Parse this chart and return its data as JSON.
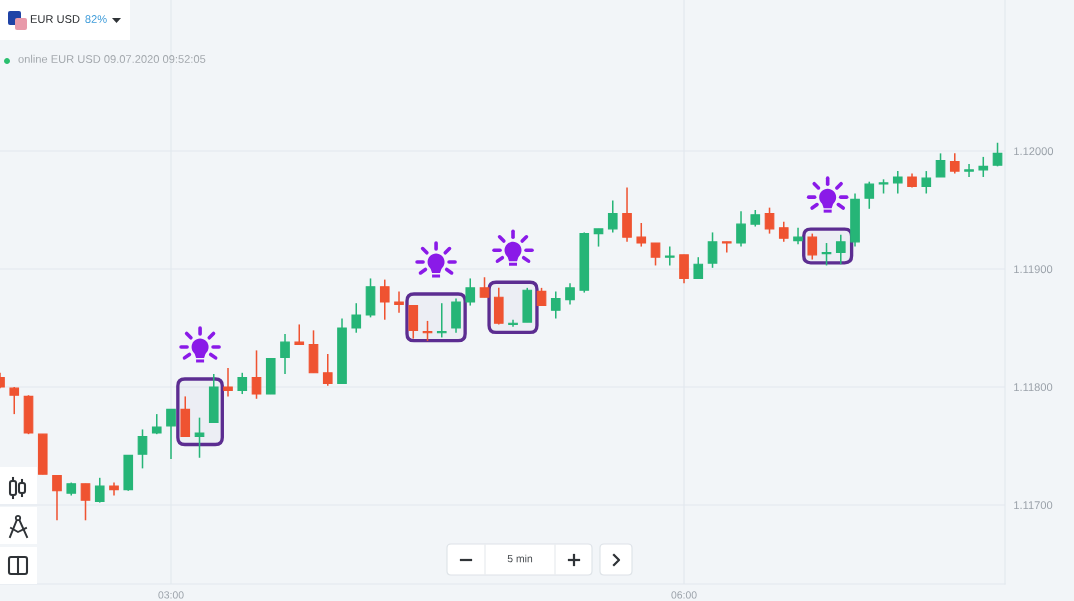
{
  "chart_data": {
    "type": "candlestick",
    "x": [
      2.0,
      2.0833,
      2.1667,
      2.25,
      2.3333,
      2.4167,
      2.5,
      2.5833,
      2.6667,
      2.75,
      2.8333,
      2.9167,
      3.0,
      3.0833,
      3.1667,
      3.25,
      3.3333,
      3.4167,
      3.5,
      3.5833,
      3.6667,
      3.75,
      3.8333,
      3.9167,
      4.0,
      4.0833,
      4.1667,
      4.25,
      4.3333,
      4.4167,
      4.5,
      4.5833,
      4.6667,
      4.75,
      4.8333,
      4.9167,
      5.0,
      5.0833,
      5.1667,
      5.25,
      5.3333,
      5.4167,
      5.5,
      5.5833,
      5.6667,
      5.75,
      5.8333,
      5.9167,
      6.0,
      6.0833,
      6.1667,
      6.25,
      6.3333,
      6.4167,
      6.5,
      6.5833,
      6.6667,
      6.75,
      6.8333,
      6.9167,
      7.0,
      7.0833,
      7.1667,
      7.25,
      7.3333,
      7.4167,
      7.5,
      7.5833,
      7.6667,
      7.75,
      7.8333
    ],
    "ohlc": [
      [
        1.11808,
        1.11812,
        1.11799,
        1.118
      ],
      [
        1.11799,
        1.118,
        1.11777,
        1.11793
      ],
      [
        1.11792,
        1.11793,
        1.1176,
        1.11761
      ],
      [
        1.1176,
        1.1176,
        1.11726,
        1.11726
      ],
      [
        1.11725,
        1.11725,
        1.11687,
        1.11712
      ],
      [
        1.1171,
        1.11719,
        1.11708,
        1.11718
      ],
      [
        1.11718,
        1.11718,
        1.11687,
        1.11704
      ],
      [
        1.11703,
        1.11723,
        1.11702,
        1.11716
      ],
      [
        1.11716,
        1.11719,
        1.11708,
        1.11713
      ],
      [
        1.11713,
        1.11742,
        1.11712,
        1.11742
      ],
      [
        1.11743,
        1.11764,
        1.11731,
        1.11758
      ],
      [
        1.11761,
        1.11777,
        1.1176,
        1.11766
      ],
      [
        1.11767,
        1.11781,
        1.11739,
        1.11781
      ],
      [
        1.11781,
        1.11792,
        1.11758,
        1.11758
      ],
      [
        1.11758,
        1.11774,
        1.1174,
        1.11761
      ],
      [
        1.1177,
        1.11811,
        1.1177,
        1.118
      ],
      [
        1.118,
        1.11816,
        1.11792,
        1.11797
      ],
      [
        1.11797,
        1.11812,
        1.11794,
        1.11808
      ],
      [
        1.11808,
        1.11831,
        1.1179,
        1.11794
      ],
      [
        1.11794,
        1.11824,
        1.11794,
        1.11824
      ],
      [
        1.11825,
        1.11845,
        1.11811,
        1.11838
      ],
      [
        1.11838,
        1.11853,
        1.11836,
        1.11836
      ],
      [
        1.11836,
        1.11848,
        1.11812,
        1.11812
      ],
      [
        1.11812,
        1.11828,
        1.11801,
        1.11803
      ],
      [
        1.11803,
        1.11858,
        1.11803,
        1.1185
      ],
      [
        1.1185,
        1.11871,
        1.11846,
        1.11861
      ],
      [
        1.11861,
        1.11892,
        1.11859,
        1.11885
      ],
      [
        1.11885,
        1.11891,
        1.11857,
        1.11872
      ],
      [
        1.11872,
        1.11881,
        1.11863,
        1.1187
      ],
      [
        1.11869,
        1.11869,
        1.11841,
        1.11848
      ],
      [
        1.11847,
        1.11856,
        1.11839,
        1.11846
      ],
      [
        1.11846,
        1.11871,
        1.11842,
        1.11847
      ],
      [
        1.1185,
        1.11875,
        1.11846,
        1.11872
      ],
      [
        1.11872,
        1.11892,
        1.11869,
        1.11884
      ],
      [
        1.11884,
        1.11893,
        1.11876,
        1.11876
      ],
      [
        1.11876,
        1.11884,
        1.11853,
        1.11854
      ],
      [
        1.11853,
        1.11857,
        1.11851,
        1.11854
      ],
      [
        1.11855,
        1.11884,
        1.11855,
        1.11882
      ],
      [
        1.11881,
        1.11884,
        1.11869,
        1.11869
      ],
      [
        1.11865,
        1.11881,
        1.11858,
        1.11875
      ],
      [
        1.11874,
        1.11888,
        1.1187,
        1.11884
      ],
      [
        1.11882,
        1.11931,
        1.1188,
        1.1193
      ],
      [
        1.1193,
        1.11934,
        1.11919,
        1.11934
      ],
      [
        1.11934,
        1.11958,
        1.11931,
        1.11947
      ],
      [
        1.11947,
        1.11969,
        1.11923,
        1.11927
      ],
      [
        1.11927,
        1.11939,
        1.11919,
        1.11922
      ],
      [
        1.11922,
        1.11922,
        1.11903,
        1.1191
      ],
      [
        1.1191,
        1.11919,
        1.11903,
        1.11911
      ],
      [
        1.11912,
        1.11912,
        1.11888,
        1.11892
      ],
      [
        1.11892,
        1.1191,
        1.11892,
        1.11904
      ],
      [
        1.11905,
        1.11931,
        1.11901,
        1.11923
      ],
      [
        1.11923,
        1.11923,
        1.11914,
        1.11922
      ],
      [
        1.11922,
        1.11949,
        1.11919,
        1.11938
      ],
      [
        1.11938,
        1.1195,
        1.11936,
        1.11946
      ],
      [
        1.11947,
        1.11952,
        1.1193,
        1.11934
      ],
      [
        1.11935,
        1.1194,
        1.11923,
        1.11926
      ],
      [
        1.11924,
        1.11935,
        1.11921,
        1.11927
      ],
      [
        1.11927,
        1.1193,
        1.11908,
        1.11912
      ],
      [
        1.11913,
        1.11922,
        1.11903,
        1.11914
      ],
      [
        1.11914,
        1.11929,
        1.11904,
        1.11923
      ],
      [
        1.11923,
        1.11964,
        1.11919,
        1.11959
      ],
      [
        1.1196,
        1.11974,
        1.11951,
        1.11972
      ],
      [
        1.11972,
        1.11976,
        1.11964,
        1.11973
      ],
      [
        1.11973,
        1.11983,
        1.11964,
        1.11978
      ],
      [
        1.11978,
        1.11981,
        1.11969,
        1.1197
      ],
      [
        1.1197,
        1.11983,
        1.11964,
        1.11977
      ],
      [
        1.11978,
        1.11998,
        1.11978,
        1.11992
      ],
      [
        1.11991,
        1.11998,
        1.11981,
        1.11983
      ],
      [
        1.11983,
        1.11989,
        1.11978,
        1.11984
      ],
      [
        1.11984,
        1.11995,
        1.11978,
        1.11987
      ],
      [
        1.11988,
        1.12007,
        1.11987,
        1.11998
      ]
    ],
    "colors": [
      "#ef5331",
      "#ef5331",
      "#ef5331",
      "#ef5331",
      "#ef5331",
      "#26b577",
      "#ef5331",
      "#26b577",
      "#ef5331",
      "#26b577",
      "#26b577",
      "#26b577",
      "#26b577",
      "#ef5331",
      "#26b577",
      "#26b577",
      "#ef5331",
      "#26b577",
      "#ef5331",
      "#26b577",
      "#26b577",
      "#ef5331",
      "#ef5331",
      "#ef5331",
      "#26b577",
      "#26b577",
      "#26b577",
      "#ef5331",
      "#ef5331",
      "#ef5331",
      "#ef5331",
      "#26b577",
      "#26b577",
      "#26b577",
      "#ef5331",
      "#ef5331",
      "#26b577",
      "#26b577",
      "#ef5331",
      "#26b577",
      "#26b577",
      "#26b577",
      "#26b577",
      "#26b577",
      "#ef5331",
      "#ef5331",
      "#ef5331",
      "#26b577",
      "#ef5331",
      "#26b577",
      "#26b577",
      "#ef5331",
      "#26b577",
      "#26b577",
      "#ef5331",
      "#ef5331",
      "#26b577",
      "#ef5331",
      "#26b577",
      "#26b577",
      "#26b577",
      "#26b577",
      "#26b577",
      "#26b577",
      "#ef5331",
      "#26b577",
      "#26b577",
      "#ef5331",
      "#26b577",
      "#26b577",
      "#26b577"
    ],
    "xlim": [
      2.0,
      7.877
    ],
    "ylim": [
      1.11633,
      1.12128
    ],
    "xticks": [
      {
        "value": 3,
        "label": "03:00"
      },
      {
        "value": 6,
        "label": "06:00"
      }
    ],
    "yticks": [
      {
        "value": 1.117,
        "label": "1.11700"
      },
      {
        "value": 1.118,
        "label": "1.11800"
      },
      {
        "value": 1.119,
        "label": "1.11900"
      },
      {
        "value": 1.12,
        "label": "1.12000"
      }
    ],
    "grid": true,
    "bands": [
      {
        "axis": "x",
        "from": 3.04,
        "to": 3.3,
        "color": "#5c2d91"
      },
      {
        "axis": "x",
        "from": 4.38,
        "to": 4.72,
        "color": "#5c2d91"
      },
      {
        "axis": "x",
        "from": 4.86,
        "to": 5.14,
        "color": "#5c2d91"
      },
      {
        "axis": "x",
        "from": 6.7,
        "to": 6.98,
        "color": "#5c2d91"
      }
    ],
    "annotations": [
      "EUR USD",
      "82%",
      "online EUR USD 09.07.2020 09:52:05",
      "5 min"
    ]
  }
}
